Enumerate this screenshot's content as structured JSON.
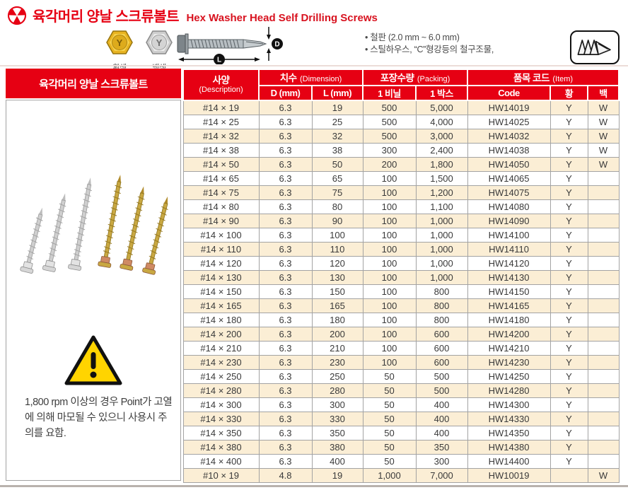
{
  "header": {
    "title_ko": "육각머리 양날 스크류볼트",
    "title_en": "Hex Washer Head Self Drilling Screws",
    "color_samples": [
      {
        "label": "황색",
        "mark": "Y"
      },
      {
        "label": "백색",
        "mark": "Y"
      }
    ],
    "diagram": {
      "length_label": "L",
      "diameter_label": "D"
    },
    "notes": [
      "철판 (2.0 mm ~ 6.0 mm)",
      "스틸하우스, “C”형강등의 철구조물,"
    ]
  },
  "table": {
    "left_header": "육각머리 양날 스크류볼트",
    "group_headers": {
      "description": "사양",
      "description_sub": "(Description)",
      "dimension": "치수",
      "dimension_sub": "(Dimension)",
      "packing": "포장수량",
      "packing_sub": "(Packing)",
      "item": "품목 코드",
      "item_sub": "(Item)"
    },
    "columns": [
      "D (mm)",
      "L (mm)",
      "1 비닐",
      "1 박스",
      "Code",
      "황",
      "백"
    ],
    "rows": [
      [
        "#14 × 19",
        "6.3",
        "19",
        "500",
        "5,000",
        "HW14019",
        "Y",
        "W"
      ],
      [
        "#14 × 25",
        "6.3",
        "25",
        "500",
        "4,000",
        "HW14025",
        "Y",
        "W"
      ],
      [
        "#14 × 32",
        "6.3",
        "32",
        "500",
        "3,000",
        "HW14032",
        "Y",
        "W"
      ],
      [
        "#14 × 38",
        "6.3",
        "38",
        "300",
        "2,400",
        "HW14038",
        "Y",
        "W"
      ],
      [
        "#14 × 50",
        "6.3",
        "50",
        "200",
        "1,800",
        "HW14050",
        "Y",
        "W"
      ],
      [
        "#14 × 65",
        "6.3",
        "65",
        "100",
        "1,500",
        "HW14065",
        "Y",
        ""
      ],
      [
        "#14 × 75",
        "6.3",
        "75",
        "100",
        "1,200",
        "HW14075",
        "Y",
        ""
      ],
      [
        "#14 × 80",
        "6.3",
        "80",
        "100",
        "1,100",
        "HW14080",
        "Y",
        ""
      ],
      [
        "#14 × 90",
        "6.3",
        "90",
        "100",
        "1,000",
        "HW14090",
        "Y",
        ""
      ],
      [
        "#14 × 100",
        "6.3",
        "100",
        "100",
        "1,000",
        "HW14100",
        "Y",
        ""
      ],
      [
        "#14 × 110",
        "6.3",
        "110",
        "100",
        "1,000",
        "HW14110",
        "Y",
        ""
      ],
      [
        "#14 × 120",
        "6.3",
        "120",
        "100",
        "1,000",
        "HW14120",
        "Y",
        ""
      ],
      [
        "#14 × 130",
        "6.3",
        "130",
        "100",
        "1,000",
        "HW14130",
        "Y",
        ""
      ],
      [
        "#14 × 150",
        "6.3",
        "150",
        "100",
        "800",
        "HW14150",
        "Y",
        ""
      ],
      [
        "#14 × 165",
        "6.3",
        "165",
        "100",
        "800",
        "HW14165",
        "Y",
        ""
      ],
      [
        "#14 × 180",
        "6.3",
        "180",
        "100",
        "800",
        "HW14180",
        "Y",
        ""
      ],
      [
        "#14 × 200",
        "6.3",
        "200",
        "100",
        "600",
        "HW14200",
        "Y",
        ""
      ],
      [
        "#14 × 210",
        "6.3",
        "210",
        "100",
        "600",
        "HW14210",
        "Y",
        ""
      ],
      [
        "#14 × 230",
        "6.3",
        "230",
        "100",
        "600",
        "HW14230",
        "Y",
        ""
      ],
      [
        "#14 × 250",
        "6.3",
        "250",
        "50",
        "500",
        "HW14250",
        "Y",
        ""
      ],
      [
        "#14 × 280",
        "6.3",
        "280",
        "50",
        "500",
        "HW14280",
        "Y",
        ""
      ],
      [
        "#14 × 300",
        "6.3",
        "300",
        "50",
        "400",
        "HW14300",
        "Y",
        ""
      ],
      [
        "#14 × 330",
        "6.3",
        "330",
        "50",
        "400",
        "HW14330",
        "Y",
        ""
      ],
      [
        "#14 × 350",
        "6.3",
        "350",
        "50",
        "400",
        "HW14350",
        "Y",
        ""
      ],
      [
        "#14 × 380",
        "6.3",
        "380",
        "50",
        "350",
        "HW14380",
        "Y",
        ""
      ],
      [
        "#14 × 400",
        "6.3",
        "400",
        "50",
        "300",
        "HW14400",
        "Y",
        ""
      ],
      [
        "#10 × 19",
        "4.8",
        "19",
        "1,000",
        "7,000",
        "HW10019",
        "",
        "W"
      ]
    ],
    "warning": "1,800 rpm 이상의 경우 Point가 고열에 의해 마모될 수 있으니 사용시 주의를 요함."
  },
  "colors": {
    "accent_red": "#e60013",
    "row_stripe": "#fbeed5",
    "warning_yellow": "#ffd400",
    "gold": "#e0a91c",
    "silver": "#c9c9c9"
  }
}
